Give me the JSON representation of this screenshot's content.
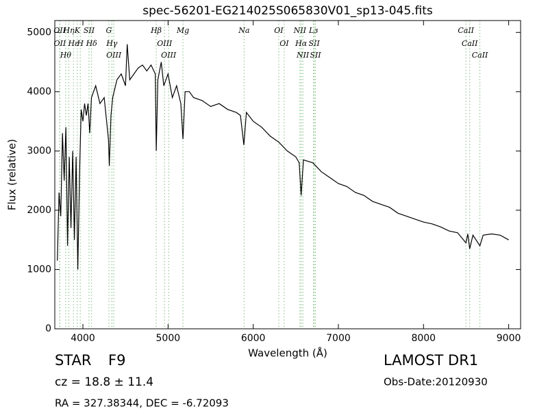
{
  "chart_data": {
    "type": "line",
    "title": "spec-56201-EG214025S065830V01_sp13-045.fits",
    "xlabel": "Wavelength (Å)",
    "ylabel": "Flux (relative)",
    "xlim": [
      3670,
      9140
    ],
    "ylim": [
      0,
      5200
    ],
    "xticks": [
      4000,
      5000,
      6000,
      7000,
      8000,
      9000
    ],
    "yticks": [
      0,
      1000,
      2000,
      3000,
      4000,
      5000
    ],
    "grid": false,
    "line_color": "#77bb77",
    "lines": [
      {
        "label": "OII",
        "wavelength": 3727
      },
      {
        "label": "OII",
        "wavelength": 3729
      },
      {
        "label": "Hθ",
        "wavelength": 3798
      },
      {
        "label": "Hη",
        "wavelength": 3835
      },
      {
        "label": "Hε",
        "wavelength": 3889
      },
      {
        "label": "K",
        "wavelength": 3934
      },
      {
        "label": "H",
        "wavelength": 3969
      },
      {
        "label": "SII",
        "wavelength": 4072
      },
      {
        "label": "Hδ",
        "wavelength": 4102
      },
      {
        "label": "G",
        "wavelength": 4305
      },
      {
        "label": "Hγ",
        "wavelength": 4340
      },
      {
        "label": "OIII",
        "wavelength": 4363
      },
      {
        "label": "Hβ",
        "wavelength": 4861
      },
      {
        "label": "OIII",
        "wavelength": 4959
      },
      {
        "label": "OIII",
        "wavelength": 5007
      },
      {
        "label": "Mg",
        "wavelength": 5175
      },
      {
        "label": "Na",
        "wavelength": 5893
      },
      {
        "label": "OI",
        "wavelength": 6300
      },
      {
        "label": "OI",
        "wavelength": 6364
      },
      {
        "label": "NII",
        "wavelength": 6548
      },
      {
        "label": "Hα",
        "wavelength": 6563
      },
      {
        "label": "NII",
        "wavelength": 6583
      },
      {
        "label": "Lз",
        "wavelength": 6708
      },
      {
        "label": "SII",
        "wavelength": 6716
      },
      {
        "label": "SII",
        "wavelength": 6731
      },
      {
        "label": "CaII",
        "wavelength": 8498
      },
      {
        "label": "CaII",
        "wavelength": 8542
      },
      {
        "label": "CaII",
        "wavelength": 8662
      }
    ],
    "series": [
      {
        "name": "flux",
        "color": "#000000",
        "x": [
          3700,
          3720,
          3740,
          3760,
          3780,
          3800,
          3820,
          3840,
          3860,
          3880,
          3900,
          3920,
          3940,
          3960,
          3980,
          4000,
          4020,
          4040,
          4060,
          4080,
          4100,
          4150,
          4200,
          4250,
          4300,
          4310,
          4330,
          4350,
          4400,
          4450,
          4500,
          4520,
          4550,
          4600,
          4650,
          4700,
          4750,
          4800,
          4850,
          4861,
          4880,
          4920,
          4950,
          5000,
          5050,
          5100,
          5150,
          5175,
          5200,
          5250,
          5300,
          5400,
          5500,
          5600,
          5700,
          5800,
          5850,
          5890,
          5920,
          6000,
          6100,
          6200,
          6300,
          6400,
          6500,
          6540,
          6563,
          6590,
          6700,
          6800,
          6900,
          7000,
          7100,
          7200,
          7300,
          7400,
          7500,
          7600,
          7700,
          7800,
          7900,
          8000,
          8100,
          8200,
          8300,
          8400,
          8498,
          8520,
          8542,
          8580,
          8662,
          8700,
          8800,
          8900,
          9000
        ],
        "values": [
          1150,
          2300,
          1900,
          3300,
          2500,
          3400,
          1400,
          2900,
          1700,
          3000,
          1500,
          2900,
          1000,
          2600,
          3700,
          3500,
          3800,
          3600,
          3800,
          3300,
          3900,
          4100,
          3800,
          3900,
          3200,
          2750,
          3600,
          3900,
          4200,
          4300,
          4100,
          4800,
          4200,
          4300,
          4400,
          4450,
          4350,
          4450,
          4300,
          3000,
          4200,
          4500,
          4100,
          4300,
          3900,
          4100,
          3800,
          3200,
          4000,
          4000,
          3900,
          3850,
          3750,
          3800,
          3700,
          3650,
          3600,
          3100,
          3650,
          3500,
          3400,
          3250,
          3150,
          3000,
          2900,
          2800,
          2250,
          2850,
          2800,
          2650,
          2550,
          2450,
          2400,
          2300,
          2250,
          2150,
          2100,
          2050,
          1950,
          1900,
          1850,
          1800,
          1770,
          1720,
          1650,
          1620,
          1450,
          1600,
          1350,
          1580,
          1400,
          1580,
          1600,
          1580,
          1500
        ]
      }
    ],
    "footer": {
      "class": "STAR",
      "subclass": "F9",
      "cz": "cz = 18.8 ± 11.4",
      "coords": "RA = 327.38344, DEC = -6.72093",
      "survey": "LAMOST DR1",
      "obs_date": "Obs-Date:20120930"
    }
  }
}
